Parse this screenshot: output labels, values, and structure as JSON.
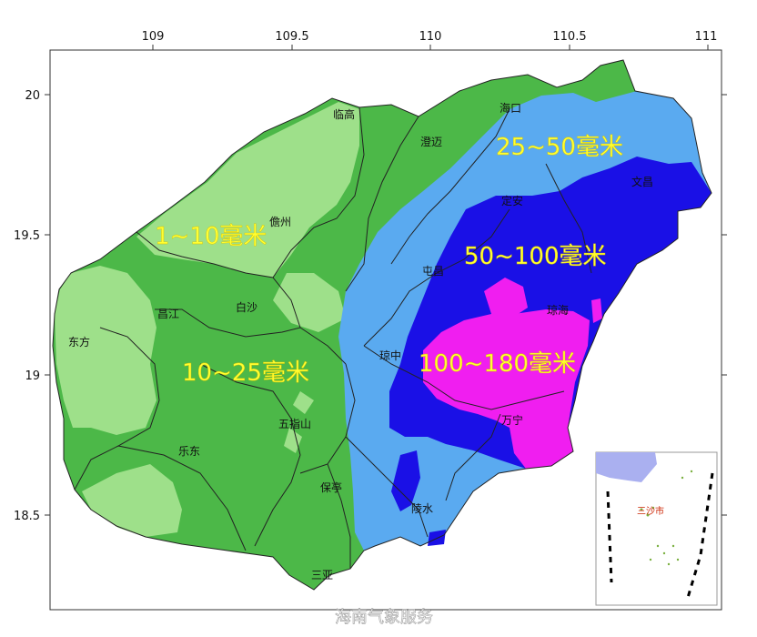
{
  "colors": {
    "zone_1_10": "#9ee08a",
    "zone_10_25": "#4cb848",
    "zone_25_50": "#5aaaf0",
    "zone_50_100": "#1a10e6",
    "zone_100_180": "#f01ef0",
    "county_border": "#222222",
    "inset_sea": "#aab0f0"
  },
  "axes": {
    "x_ticks": [
      "109",
      "109.5",
      "110",
      "110.5",
      "111"
    ],
    "y_ticks": [
      "20",
      "19.5",
      "19",
      "18.5"
    ]
  },
  "rainfall_zones": [
    {
      "id": "z1",
      "label": "1~10毫米"
    },
    {
      "id": "z2",
      "label": "10~25毫米"
    },
    {
      "id": "z3",
      "label": "25~50毫米"
    },
    {
      "id": "z4",
      "label": "50~100毫米"
    },
    {
      "id": "z5",
      "label": "100~180毫米"
    }
  ],
  "cities": [
    {
      "name": "海口"
    },
    {
      "name": "临高"
    },
    {
      "name": "澄迈"
    },
    {
      "name": "文昌"
    },
    {
      "name": "定安"
    },
    {
      "name": "儋州"
    },
    {
      "name": "屯昌"
    },
    {
      "name": "白沙"
    },
    {
      "name": "昌江"
    },
    {
      "name": "琼海"
    },
    {
      "name": "东方"
    },
    {
      "name": "琼中"
    },
    {
      "name": "五指山"
    },
    {
      "name": "万宁"
    },
    {
      "name": "乐东"
    },
    {
      "name": "保亭"
    },
    {
      "name": "陵水"
    },
    {
      "name": "三亚"
    }
  ],
  "inset": {
    "label": "三沙市"
  },
  "watermark": "海南气象服务"
}
